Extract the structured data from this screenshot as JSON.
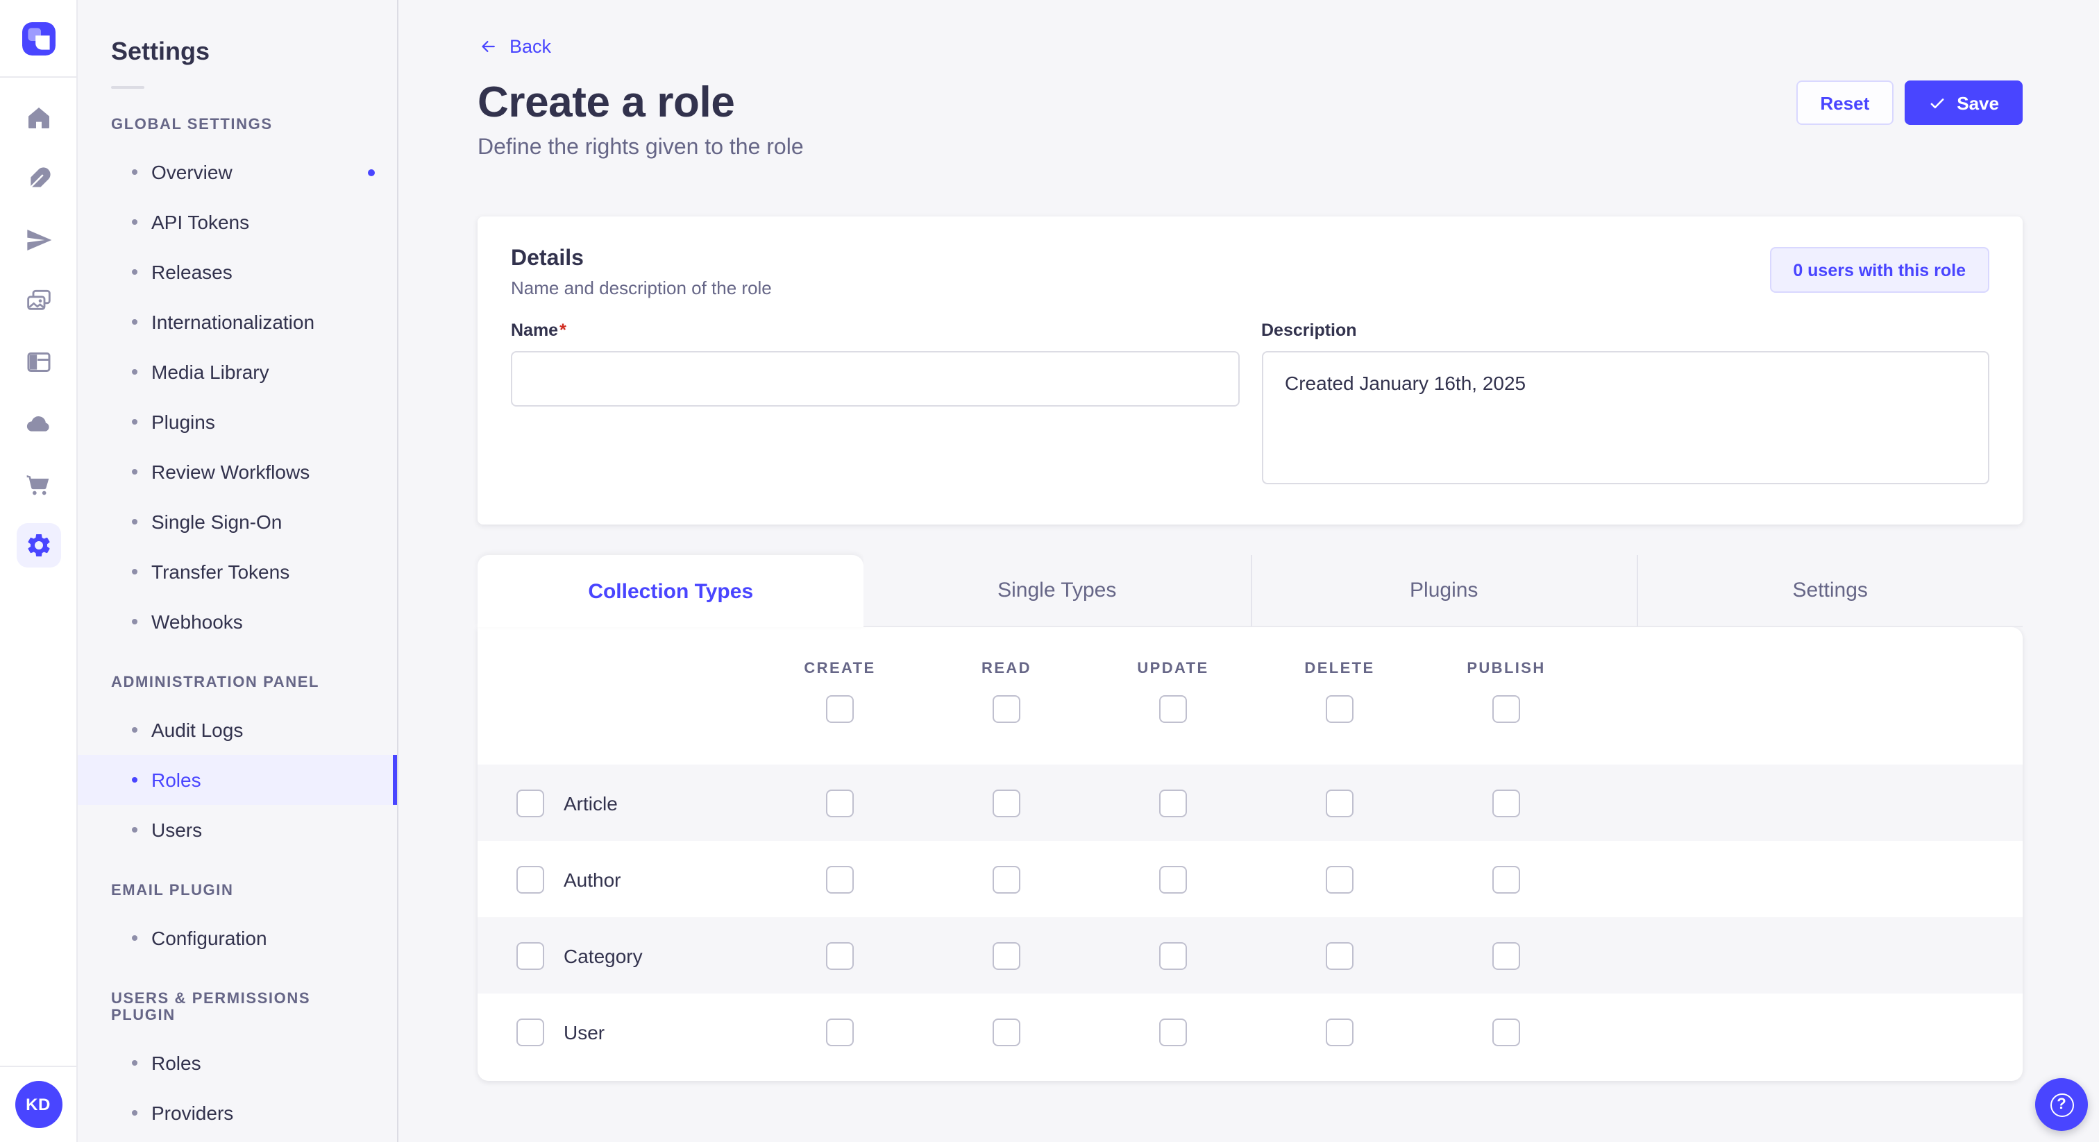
{
  "workspace": {
    "icon_nav": {
      "items": [
        {
          "name": "home",
          "active": false
        },
        {
          "name": "feather",
          "active": false
        },
        {
          "name": "paper-plane",
          "active": false
        },
        {
          "name": "media",
          "active": false
        },
        {
          "name": "layout",
          "active": false
        },
        {
          "name": "cloud",
          "active": false
        },
        {
          "name": "cart",
          "active": false
        },
        {
          "name": "gear",
          "active": true
        }
      ],
      "avatar_initials": "KD"
    }
  },
  "settings_nav": {
    "title": "Settings",
    "sections": [
      {
        "label": "GLOBAL SETTINGS",
        "items": [
          {
            "label": "Overview",
            "notification": true
          },
          {
            "label": "API Tokens"
          },
          {
            "label": "Releases"
          },
          {
            "label": "Internationalization"
          },
          {
            "label": "Media Library"
          },
          {
            "label": "Plugins"
          },
          {
            "label": "Review Workflows"
          },
          {
            "label": "Single Sign-On"
          },
          {
            "label": "Transfer Tokens"
          },
          {
            "label": "Webhooks"
          }
        ]
      },
      {
        "label": "ADMINISTRATION PANEL",
        "items": [
          {
            "label": "Audit Logs"
          },
          {
            "label": "Roles",
            "active": true
          },
          {
            "label": "Users"
          }
        ]
      },
      {
        "label": "EMAIL PLUGIN",
        "items": [
          {
            "label": "Configuration"
          }
        ]
      },
      {
        "label": "USERS & PERMISSIONS PLUGIN",
        "items": [
          {
            "label": "Roles"
          },
          {
            "label": "Providers"
          }
        ]
      }
    ]
  },
  "header": {
    "back_label": "Back",
    "title": "Create a role",
    "subtitle": "Define the rights given to the role",
    "reset_label": "Reset",
    "save_label": "Save"
  },
  "details_card": {
    "title": "Details",
    "subtitle": "Name and description of the role",
    "users_badge": "0 users with this role",
    "name_label": "Name",
    "name_required_mark": "*",
    "name_value": "",
    "description_label": "Description",
    "description_value": "Created January 16th, 2025"
  },
  "tabs": [
    {
      "label": "Collection Types",
      "active": true
    },
    {
      "label": "Single Types",
      "active": false
    },
    {
      "label": "Plugins",
      "active": false
    },
    {
      "label": "Settings",
      "active": false
    }
  ],
  "permissions": {
    "columns": [
      "CREATE",
      "READ",
      "UPDATE",
      "DELETE",
      "PUBLISH"
    ],
    "rows": [
      {
        "label": "Article",
        "checked": [
          false,
          false,
          false,
          false,
          false
        ]
      },
      {
        "label": "Author",
        "checked": [
          false,
          false,
          false,
          false,
          false
        ]
      },
      {
        "label": "Category",
        "checked": [
          false,
          false,
          false,
          false,
          false
        ]
      },
      {
        "label": "User",
        "checked": [
          false,
          false,
          false,
          false,
          false
        ]
      }
    ]
  },
  "colors": {
    "primary": "#4945ff",
    "primary_light": "#f0f0ff",
    "primary_border": "#d9d8ff",
    "text_dark": "#32324d",
    "text_gray": "#666687",
    "icon_gray": "#8e8ea9",
    "page_bg": "#f6f6f9",
    "required_red": "#d02b20"
  },
  "help_button": {
    "glyph": "?"
  }
}
